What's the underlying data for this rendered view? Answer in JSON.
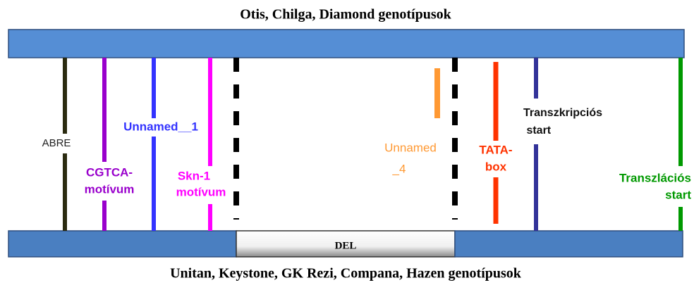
{
  "header": {
    "title": "Otis, Chilga,  Diamond  genotípusok"
  },
  "footer": {
    "title": "Unitan,  Keystone, GK Rezi, Compana,  Hazen  genotípusok"
  },
  "deletion": {
    "label": "DEL"
  },
  "elements": [
    {
      "lines": [
        "ABRE"
      ]
    },
    {
      "lines": [
        "CGTCA-",
        "motívum"
      ]
    },
    {
      "lines": [
        "Unnamed__1"
      ]
    },
    {
      "lines": [
        "Skn-1",
        "motívum"
      ]
    },
    {
      "lines": [
        "Unnamed",
        "_4"
      ]
    },
    {
      "lines": [
        "TATA-",
        "box"
      ]
    },
    {
      "lines": [
        "Transzkripciós",
        " start"
      ]
    },
    {
      "lines": [
        "Transzlációs",
        "start"
      ]
    }
  ]
}
